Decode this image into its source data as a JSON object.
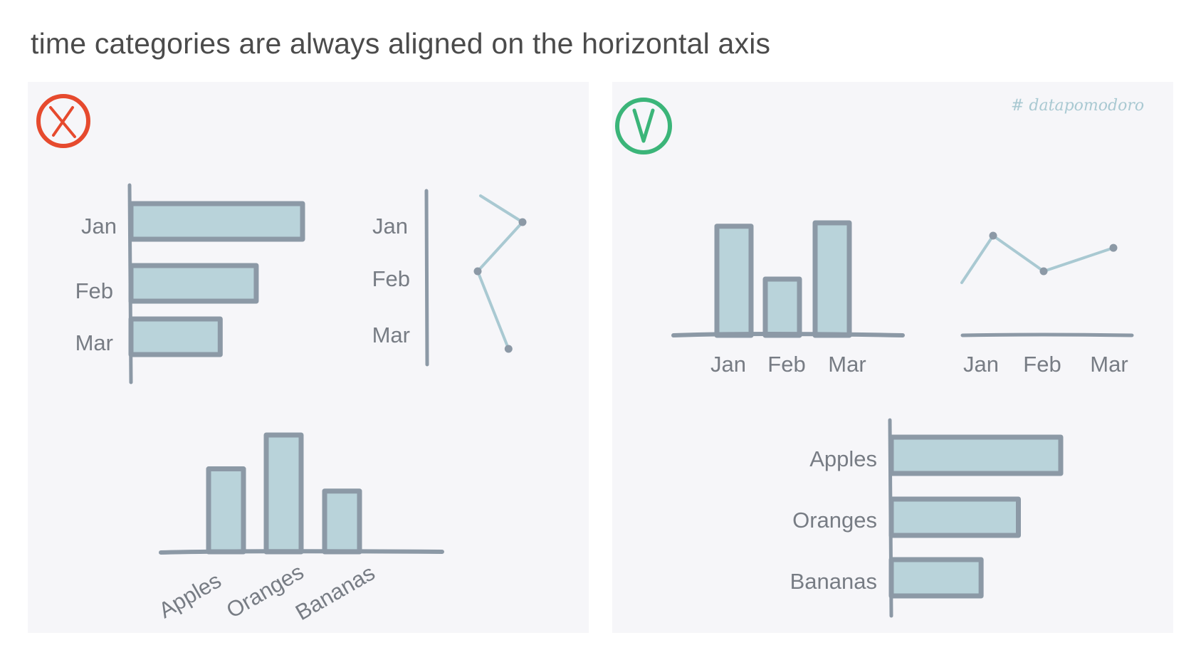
{
  "title": "time categories are always aligned on the horizontal axis",
  "colors": {
    "background": "#ffffff",
    "panel": "#f6f6f9",
    "bar_fill": "#b9d3da",
    "bar_stroke": "#8c99a6",
    "axis": "#8c99a6",
    "line": "#a9c9d2",
    "text": "#777c84",
    "wrong_mark": "#e64a2e",
    "right_mark": "#3bb579"
  },
  "panels": {
    "wrong": {
      "badge_icon": "x-circle-icon",
      "monthly_bar": {
        "type": "bar",
        "orientation": "horizontal",
        "categories": [
          "Jan",
          "Feb",
          "Mar"
        ],
        "values": [
          100,
          73,
          52
        ]
      },
      "monthly_line": {
        "type": "line",
        "orientation": "vertical",
        "categories": [
          "Jan",
          "Feb",
          "Mar"
        ],
        "values": [
          63,
          15,
          48
        ]
      },
      "fruit_bar": {
        "type": "bar",
        "orientation": "vertical",
        "categories": [
          "Apples",
          "Oranges",
          "Bananas"
        ],
        "values": [
          71,
          100,
          52
        ]
      }
    },
    "right": {
      "badge_icon": "check-v-circle-icon",
      "watermark": "# datapomodoro",
      "monthly_bar": {
        "type": "bar",
        "orientation": "vertical",
        "categories": [
          "Jan",
          "Feb",
          "Mar"
        ],
        "values": [
          97,
          50,
          100
        ]
      },
      "monthly_line": {
        "type": "line",
        "orientation": "horizontal",
        "categories": [
          "Jan",
          "Feb",
          "Mar"
        ],
        "values": [
          100,
          65,
          88
        ]
      },
      "fruit_bar": {
        "type": "bar",
        "orientation": "horizontal",
        "categories": [
          "Apples",
          "Oranges",
          "Bananas"
        ],
        "values": [
          100,
          75,
          53
        ]
      }
    }
  }
}
